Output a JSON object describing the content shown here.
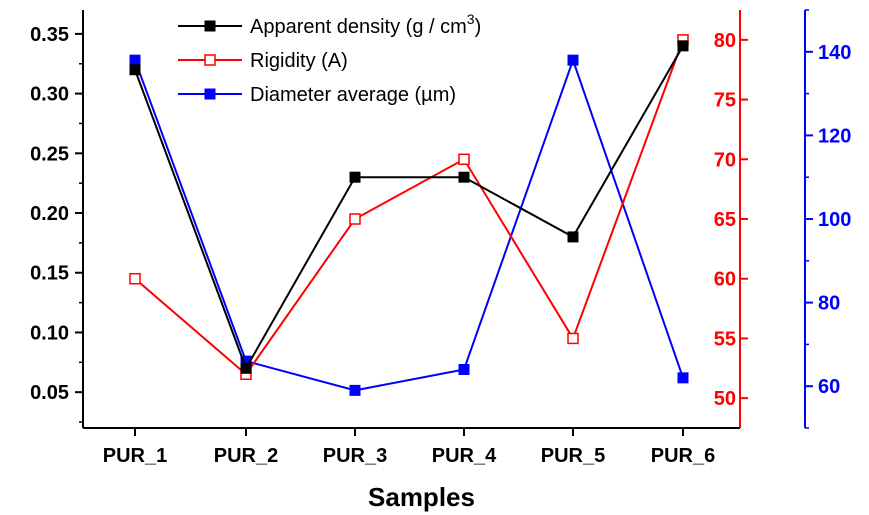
{
  "chart_data": {
    "type": "line",
    "xlabel": "Samples",
    "categories": [
      "PUR_1",
      "PUR_2",
      "PUR_3",
      "PUR_4",
      "PUR_5",
      "PUR_6"
    ],
    "axes": {
      "left": {
        "ylim": [
          0.02,
          0.37
        ],
        "ticks": [
          0.05,
          0.1,
          0.15,
          0.2,
          0.25,
          0.3,
          0.35
        ],
        "tick_labels": [
          "0.05",
          "0.10",
          "0.15",
          "0.20",
          "0.25",
          "0.30",
          "0.35"
        ],
        "color": "#000000"
      },
      "right1": {
        "ylim": [
          47.5,
          82.5
        ],
        "ticks": [
          50,
          55,
          60,
          65,
          70,
          75,
          80
        ],
        "tick_labels": [
          "50",
          "55",
          "60",
          "65",
          "70",
          "75",
          "80"
        ],
        "color": "#ff0000"
      },
      "right2": {
        "ylim": [
          50,
          150
        ],
        "ticks": [
          60,
          80,
          100,
          120,
          140
        ],
        "tick_labels": [
          "60",
          "80",
          "100",
          "120",
          "140"
        ],
        "color": "#0000ff"
      }
    },
    "series": [
      {
        "name": "Apparent density (g / cm3)",
        "axis": "left",
        "color": "#000000",
        "marker": "filled-square",
        "values": [
          0.32,
          0.07,
          0.23,
          0.23,
          0.18,
          0.34
        ]
      },
      {
        "name": "Rigidity (A)",
        "axis": "right1",
        "color": "#ff0000",
        "marker": "open-square",
        "values": [
          60,
          52,
          65,
          70,
          55,
          80
        ]
      },
      {
        "name": "Diameter average (µm)",
        "axis": "right2",
        "color": "#0000ff",
        "marker": "filled-square",
        "values": [
          138,
          66,
          59,
          64,
          138,
          62
        ]
      }
    ],
    "legend": {
      "placement": "top-center",
      "entries": [
        {
          "series": 0,
          "text": "Apparent density (g / cm",
          "sup": "3",
          "tail": ")"
        },
        {
          "series": 1,
          "text": "Rigidity (A)",
          "sup": "",
          "tail": ""
        },
        {
          "series": 2,
          "text": "Diameter average (µm)",
          "sup": "",
          "tail": ""
        }
      ]
    },
    "grid": false
  }
}
